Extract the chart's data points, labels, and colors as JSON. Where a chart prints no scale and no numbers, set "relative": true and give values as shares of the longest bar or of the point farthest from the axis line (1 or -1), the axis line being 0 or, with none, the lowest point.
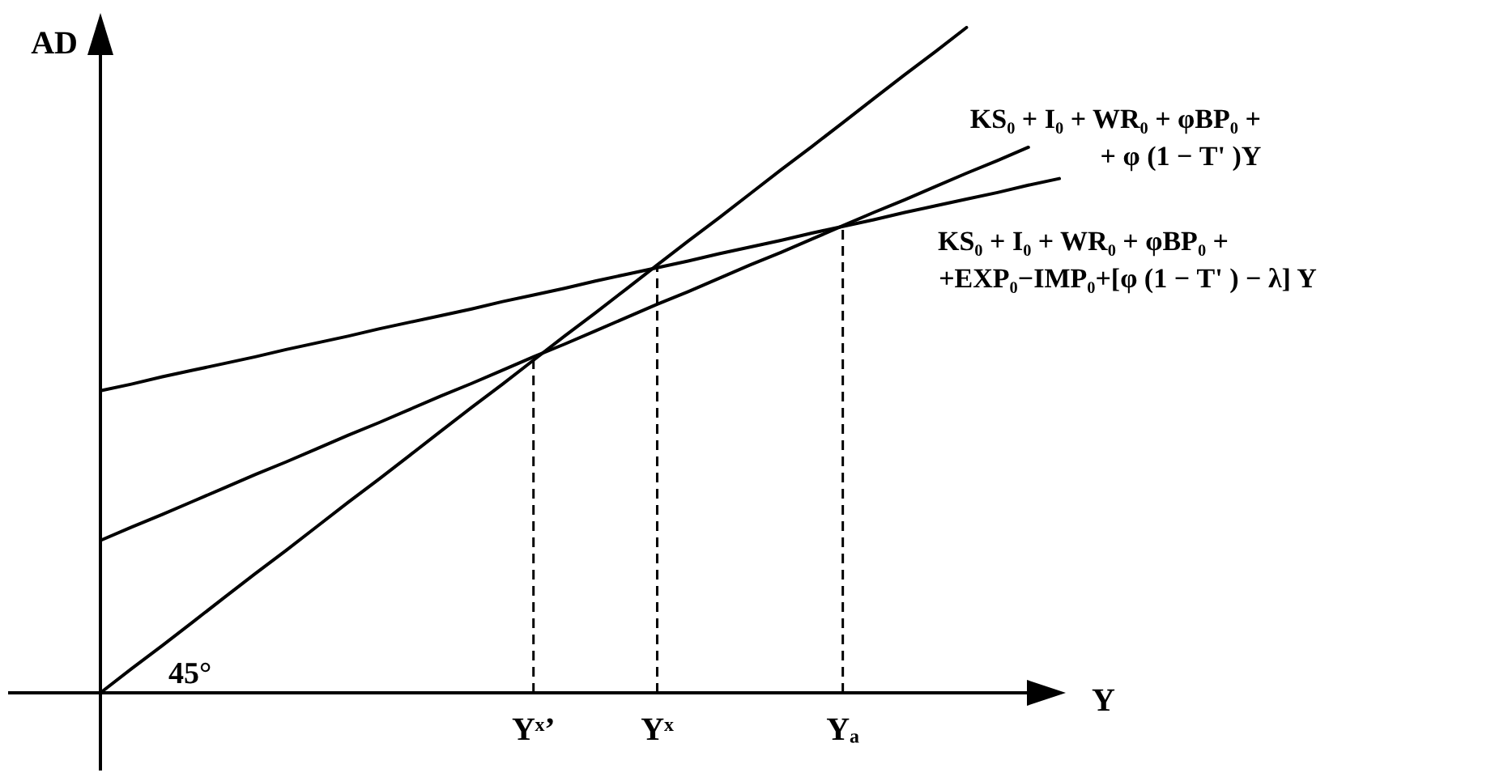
{
  "chart_data": {
    "type": "line",
    "relative": true,
    "xlabel": "Y",
    "ylabel": "AD",
    "legend": false,
    "grid": false,
    "marker": "none",
    "line_style": "solid",
    "categories": [
      null,
      null,
      null,
      null,
      null,
      null,
      null,
      null,
      null,
      null,
      null,
      null,
      null,
      null,
      "Yˣ’",
      null,
      null,
      null,
      "Yˣ",
      null,
      null,
      null,
      null,
      null,
      "Yₐ",
      null,
      null,
      null,
      null,
      null,
      null,
      null
    ],
    "series": [
      {
        "color": "#000000",
        "values": [
          0,
          0.036,
          0.071,
          0.107,
          0.143,
          0.179,
          0.214,
          0.25,
          0.286,
          0.321,
          0.357,
          0.393,
          0.429,
          0.464,
          0.5,
          0.536,
          0.571,
          0.607,
          0.643,
          0.679,
          0.714,
          0.75,
          0.786,
          0.821,
          0.857,
          0.893,
          0.929,
          0.964,
          1,
          null,
          null,
          null
        ]
      },
      {
        "name": "KS₀ + I₀ + WR₀ + φBP₀ +\n+ φ (1 − T' )Y",
        "color": "#000000",
        "values": [
          0.229,
          0.249,
          0.268,
          0.288,
          0.308,
          0.328,
          0.347,
          0.367,
          0.387,
          0.406,
          0.426,
          0.446,
          0.465,
          0.485,
          0.505,
          0.524,
          0.544,
          0.564,
          0.584,
          0.603,
          0.623,
          0.643,
          0.662,
          0.682,
          0.702,
          0.722,
          0.741,
          0.761,
          0.781,
          0.8,
          0.82,
          null
        ]
      },
      {
        "name": "KS₀ + I₀ + WR₀ + φBP₀ +\n+EXP₀−IMP₀+[φ (1 − T' ) − λ] Y",
        "color": "#000000",
        "values": [
          0.454,
          0.464,
          0.475,
          0.485,
          0.495,
          0.505,
          0.516,
          0.526,
          0.536,
          0.547,
          0.557,
          0.567,
          0.577,
          0.588,
          0.598,
          0.608,
          0.619,
          0.629,
          0.639,
          0.649,
          0.66,
          0.67,
          0.68,
          0.691,
          0.701,
          0.711,
          0.722,
          0.732,
          0.742,
          0.752,
          0.763,
          0.773
        ]
      }
    ],
    "ref_lines": [
      {
        "axis": "x",
        "value": "Yˣ’",
        "line_style": "dashed"
      },
      {
        "axis": "x",
        "value": "Yˣ",
        "line_style": "dashed"
      },
      {
        "axis": "x",
        "value": "Yₐ",
        "line_style": "dashed"
      }
    ],
    "annotations": [
      "45°"
    ]
  }
}
